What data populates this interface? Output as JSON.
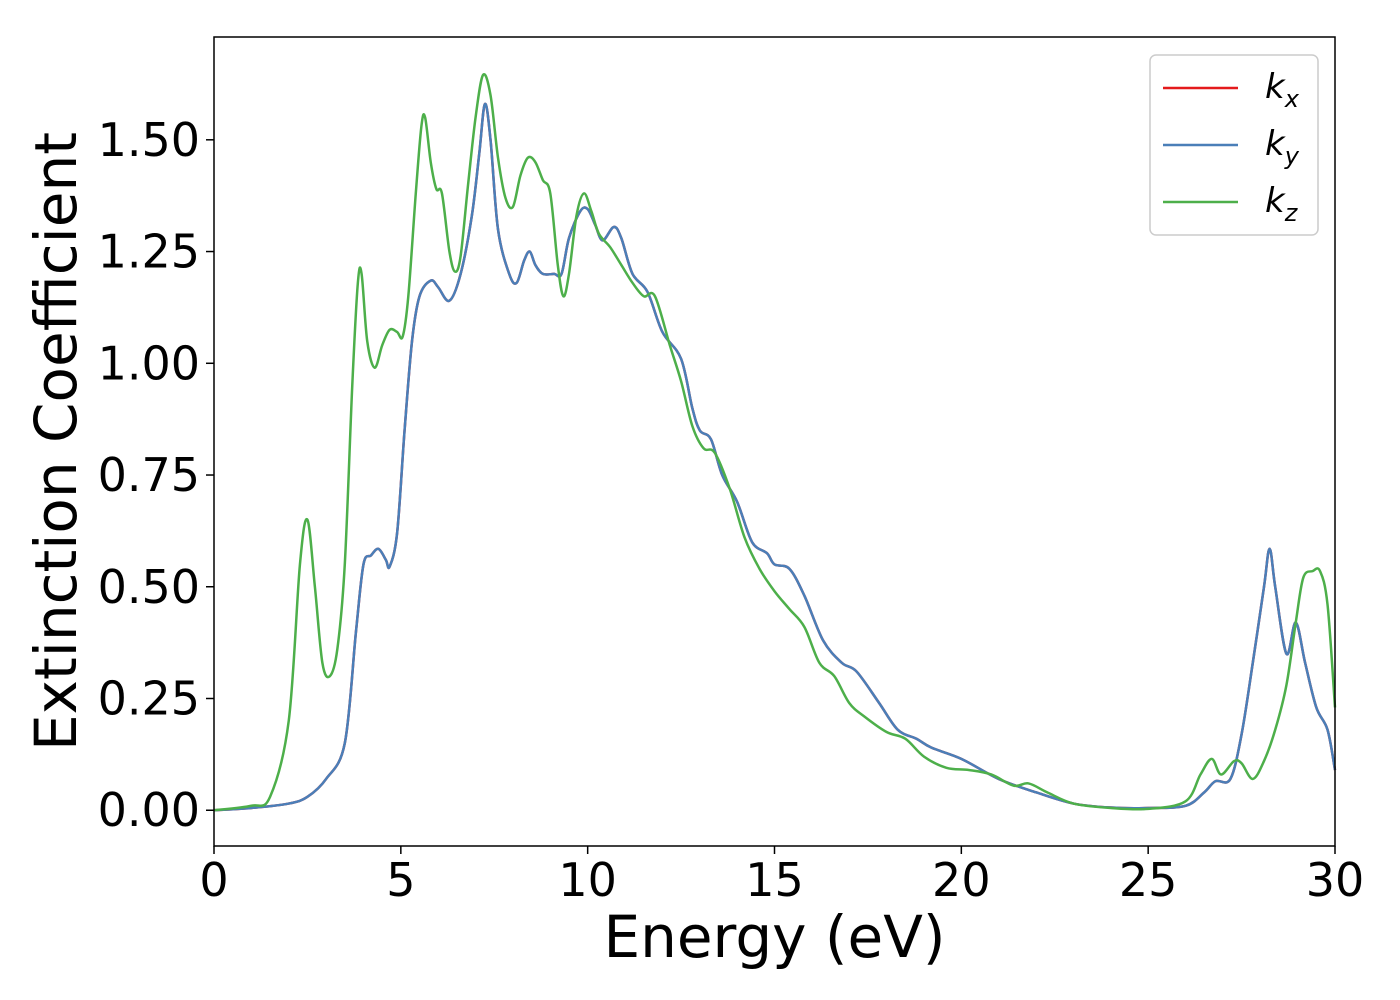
{
  "chart_data": {
    "type": "line",
    "title": "",
    "xlabel": "Energy (eV)",
    "ylabel": "Extinction Coefficient",
    "xlim": [
      0,
      30
    ],
    "ylim": [
      -0.08,
      1.73
    ],
    "xticks": [
      0,
      5,
      10,
      15,
      20,
      25,
      30
    ],
    "xtick_labels": [
      "0",
      "5",
      "10",
      "15",
      "20",
      "25",
      "30"
    ],
    "yticks": [
      0.0,
      0.25,
      0.5,
      0.75,
      1.0,
      1.25,
      1.5
    ],
    "ytick_labels": [
      "0.00",
      "0.25",
      "0.50",
      "0.75",
      "1.00",
      "1.25",
      "1.50"
    ],
    "grid": false,
    "legend_position": "top-right",
    "series": [
      {
        "name": "k",
        "subscript": "x",
        "color": "#e41a1c",
        "points": [
          [
            0,
            0.0
          ],
          [
            1,
            0.005
          ],
          [
            2,
            0.015
          ],
          [
            2.5,
            0.03
          ],
          [
            3,
            0.07
          ],
          [
            3.5,
            0.15
          ],
          [
            3.8,
            0.4
          ],
          [
            4,
            0.55
          ],
          [
            4.2,
            0.57
          ],
          [
            4.4,
            0.585
          ],
          [
            4.6,
            0.56
          ],
          [
            4.7,
            0.545
          ],
          [
            4.9,
            0.62
          ],
          [
            5.1,
            0.85
          ],
          [
            5.3,
            1.05
          ],
          [
            5.5,
            1.15
          ],
          [
            5.8,
            1.185
          ],
          [
            6,
            1.17
          ],
          [
            6.3,
            1.14
          ],
          [
            6.6,
            1.2
          ],
          [
            6.9,
            1.33
          ],
          [
            7.1,
            1.47
          ],
          [
            7.25,
            1.58
          ],
          [
            7.4,
            1.5
          ],
          [
            7.6,
            1.3
          ],
          [
            7.9,
            1.2
          ],
          [
            8.1,
            1.18
          ],
          [
            8.3,
            1.23
          ],
          [
            8.45,
            1.25
          ],
          [
            8.6,
            1.22
          ],
          [
            8.8,
            1.2
          ],
          [
            9.1,
            1.2
          ],
          [
            9.3,
            1.2
          ],
          [
            9.5,
            1.28
          ],
          [
            9.8,
            1.34
          ],
          [
            10,
            1.345
          ],
          [
            10.2,
            1.31
          ],
          [
            10.4,
            1.275
          ],
          [
            10.7,
            1.305
          ],
          [
            10.9,
            1.28
          ],
          [
            11.2,
            1.2
          ],
          [
            11.6,
            1.16
          ],
          [
            12,
            1.07
          ],
          [
            12.5,
            1.01
          ],
          [
            12.8,
            0.9
          ],
          [
            13,
            0.85
          ],
          [
            13.3,
            0.83
          ],
          [
            13.6,
            0.75
          ],
          [
            14,
            0.69
          ],
          [
            14.4,
            0.6
          ],
          [
            14.8,
            0.575
          ],
          [
            15,
            0.55
          ],
          [
            15.4,
            0.54
          ],
          [
            15.8,
            0.48
          ],
          [
            16.3,
            0.38
          ],
          [
            16.8,
            0.33
          ],
          [
            17.2,
            0.31
          ],
          [
            17.8,
            0.24
          ],
          [
            18.3,
            0.18
          ],
          [
            18.8,
            0.16
          ],
          [
            19.2,
            0.14
          ],
          [
            20,
            0.115
          ],
          [
            21,
            0.07
          ],
          [
            22,
            0.04
          ],
          [
            23,
            0.015
          ],
          [
            24,
            0.006
          ],
          [
            25,
            0.005
          ],
          [
            26,
            0.01
          ],
          [
            26.5,
            0.04
          ],
          [
            26.8,
            0.065
          ],
          [
            27.2,
            0.07
          ],
          [
            27.5,
            0.17
          ],
          [
            27.8,
            0.33
          ],
          [
            28.1,
            0.5
          ],
          [
            28.25,
            0.585
          ],
          [
            28.4,
            0.5
          ],
          [
            28.7,
            0.35
          ],
          [
            28.95,
            0.42
          ],
          [
            29.2,
            0.33
          ],
          [
            29.5,
            0.23
          ],
          [
            29.8,
            0.18
          ],
          [
            30,
            0.09
          ]
        ]
      },
      {
        "name": "k",
        "subscript": "y",
        "color": "#4a7fb8",
        "points": [
          [
            0,
            0.0
          ],
          [
            1,
            0.005
          ],
          [
            2,
            0.015
          ],
          [
            2.5,
            0.03
          ],
          [
            3,
            0.07
          ],
          [
            3.5,
            0.15
          ],
          [
            3.8,
            0.4
          ],
          [
            4,
            0.55
          ],
          [
            4.2,
            0.57
          ],
          [
            4.4,
            0.585
          ],
          [
            4.6,
            0.56
          ],
          [
            4.7,
            0.545
          ],
          [
            4.9,
            0.62
          ],
          [
            5.1,
            0.85
          ],
          [
            5.3,
            1.05
          ],
          [
            5.5,
            1.15
          ],
          [
            5.8,
            1.185
          ],
          [
            6,
            1.17
          ],
          [
            6.3,
            1.14
          ],
          [
            6.6,
            1.2
          ],
          [
            6.9,
            1.33
          ],
          [
            7.1,
            1.47
          ],
          [
            7.25,
            1.58
          ],
          [
            7.4,
            1.5
          ],
          [
            7.6,
            1.3
          ],
          [
            7.9,
            1.2
          ],
          [
            8.1,
            1.18
          ],
          [
            8.3,
            1.23
          ],
          [
            8.45,
            1.25
          ],
          [
            8.6,
            1.22
          ],
          [
            8.8,
            1.2
          ],
          [
            9.1,
            1.2
          ],
          [
            9.3,
            1.2
          ],
          [
            9.5,
            1.28
          ],
          [
            9.8,
            1.34
          ],
          [
            10,
            1.345
          ],
          [
            10.2,
            1.31
          ],
          [
            10.4,
            1.275
          ],
          [
            10.7,
            1.305
          ],
          [
            10.9,
            1.28
          ],
          [
            11.2,
            1.2
          ],
          [
            11.6,
            1.16
          ],
          [
            12,
            1.07
          ],
          [
            12.5,
            1.01
          ],
          [
            12.8,
            0.9
          ],
          [
            13,
            0.85
          ],
          [
            13.3,
            0.83
          ],
          [
            13.6,
            0.75
          ],
          [
            14,
            0.69
          ],
          [
            14.4,
            0.6
          ],
          [
            14.8,
            0.575
          ],
          [
            15,
            0.55
          ],
          [
            15.4,
            0.54
          ],
          [
            15.8,
            0.48
          ],
          [
            16.3,
            0.38
          ],
          [
            16.8,
            0.33
          ],
          [
            17.2,
            0.31
          ],
          [
            17.8,
            0.24
          ],
          [
            18.3,
            0.18
          ],
          [
            18.8,
            0.16
          ],
          [
            19.2,
            0.14
          ],
          [
            20,
            0.115
          ],
          [
            21,
            0.07
          ],
          [
            22,
            0.04
          ],
          [
            23,
            0.015
          ],
          [
            24,
            0.006
          ],
          [
            25,
            0.005
          ],
          [
            26,
            0.01
          ],
          [
            26.5,
            0.04
          ],
          [
            26.8,
            0.065
          ],
          [
            27.2,
            0.07
          ],
          [
            27.5,
            0.17
          ],
          [
            27.8,
            0.33
          ],
          [
            28.1,
            0.5
          ],
          [
            28.25,
            0.585
          ],
          [
            28.4,
            0.5
          ],
          [
            28.7,
            0.35
          ],
          [
            28.95,
            0.42
          ],
          [
            29.2,
            0.33
          ],
          [
            29.5,
            0.23
          ],
          [
            29.8,
            0.18
          ],
          [
            30,
            0.09
          ]
        ]
      },
      {
        "name": "k",
        "subscript": "z",
        "color": "#4daf4a",
        "points": [
          [
            0,
            0.0
          ],
          [
            1,
            0.01
          ],
          [
            1.5,
            0.03
          ],
          [
            2,
            0.2
          ],
          [
            2.3,
            0.55
          ],
          [
            2.5,
            0.65
          ],
          [
            2.7,
            0.5
          ],
          [
            2.9,
            0.33
          ],
          [
            3.1,
            0.3
          ],
          [
            3.3,
            0.36
          ],
          [
            3.5,
            0.55
          ],
          [
            3.7,
            0.95
          ],
          [
            3.85,
            1.18
          ],
          [
            3.95,
            1.2
          ],
          [
            4.1,
            1.05
          ],
          [
            4.3,
            0.99
          ],
          [
            4.5,
            1.04
          ],
          [
            4.7,
            1.075
          ],
          [
            4.9,
            1.07
          ],
          [
            5.05,
            1.06
          ],
          [
            5.2,
            1.15
          ],
          [
            5.4,
            1.38
          ],
          [
            5.55,
            1.53
          ],
          [
            5.65,
            1.55
          ],
          [
            5.8,
            1.45
          ],
          [
            5.95,
            1.39
          ],
          [
            6.1,
            1.38
          ],
          [
            6.3,
            1.25
          ],
          [
            6.45,
            1.205
          ],
          [
            6.6,
            1.24
          ],
          [
            6.8,
            1.4
          ],
          [
            7.0,
            1.55
          ],
          [
            7.2,
            1.645
          ],
          [
            7.4,
            1.6
          ],
          [
            7.6,
            1.46
          ],
          [
            7.8,
            1.37
          ],
          [
            8.0,
            1.35
          ],
          [
            8.2,
            1.42
          ],
          [
            8.4,
            1.46
          ],
          [
            8.6,
            1.45
          ],
          [
            8.8,
            1.41
          ],
          [
            9.0,
            1.38
          ],
          [
            9.2,
            1.22
          ],
          [
            9.35,
            1.15
          ],
          [
            9.5,
            1.2
          ],
          [
            9.7,
            1.33
          ],
          [
            9.9,
            1.38
          ],
          [
            10.1,
            1.34
          ],
          [
            10.3,
            1.29
          ],
          [
            10.6,
            1.26
          ],
          [
            10.9,
            1.22
          ],
          [
            11.2,
            1.18
          ],
          [
            11.5,
            1.15
          ],
          [
            11.8,
            1.15
          ],
          [
            12.2,
            1.04
          ],
          [
            12.5,
            0.96
          ],
          [
            12.8,
            0.86
          ],
          [
            13.1,
            0.81
          ],
          [
            13.4,
            0.8
          ],
          [
            13.8,
            0.72
          ],
          [
            14.2,
            0.61
          ],
          [
            14.6,
            0.54
          ],
          [
            15,
            0.49
          ],
          [
            15.4,
            0.45
          ],
          [
            15.8,
            0.41
          ],
          [
            16.2,
            0.33
          ],
          [
            16.6,
            0.3
          ],
          [
            17,
            0.24
          ],
          [
            17.4,
            0.21
          ],
          [
            18,
            0.175
          ],
          [
            18.5,
            0.16
          ],
          [
            19,
            0.12
          ],
          [
            19.6,
            0.095
          ],
          [
            20.2,
            0.09
          ],
          [
            20.8,
            0.08
          ],
          [
            21.4,
            0.055
          ],
          [
            21.8,
            0.06
          ],
          [
            22.3,
            0.04
          ],
          [
            23,
            0.015
          ],
          [
            24,
            0.005
          ],
          [
            25,
            0.003
          ],
          [
            26,
            0.02
          ],
          [
            26.4,
            0.08
          ],
          [
            26.7,
            0.115
          ],
          [
            26.95,
            0.08
          ],
          [
            27.3,
            0.11
          ],
          [
            27.5,
            0.105
          ],
          [
            27.8,
            0.07
          ],
          [
            28.1,
            0.11
          ],
          [
            28.4,
            0.18
          ],
          [
            28.7,
            0.28
          ],
          [
            28.95,
            0.42
          ],
          [
            29.15,
            0.52
          ],
          [
            29.4,
            0.535
          ],
          [
            29.6,
            0.535
          ],
          [
            29.8,
            0.46
          ],
          [
            30,
            0.23
          ]
        ]
      }
    ]
  }
}
